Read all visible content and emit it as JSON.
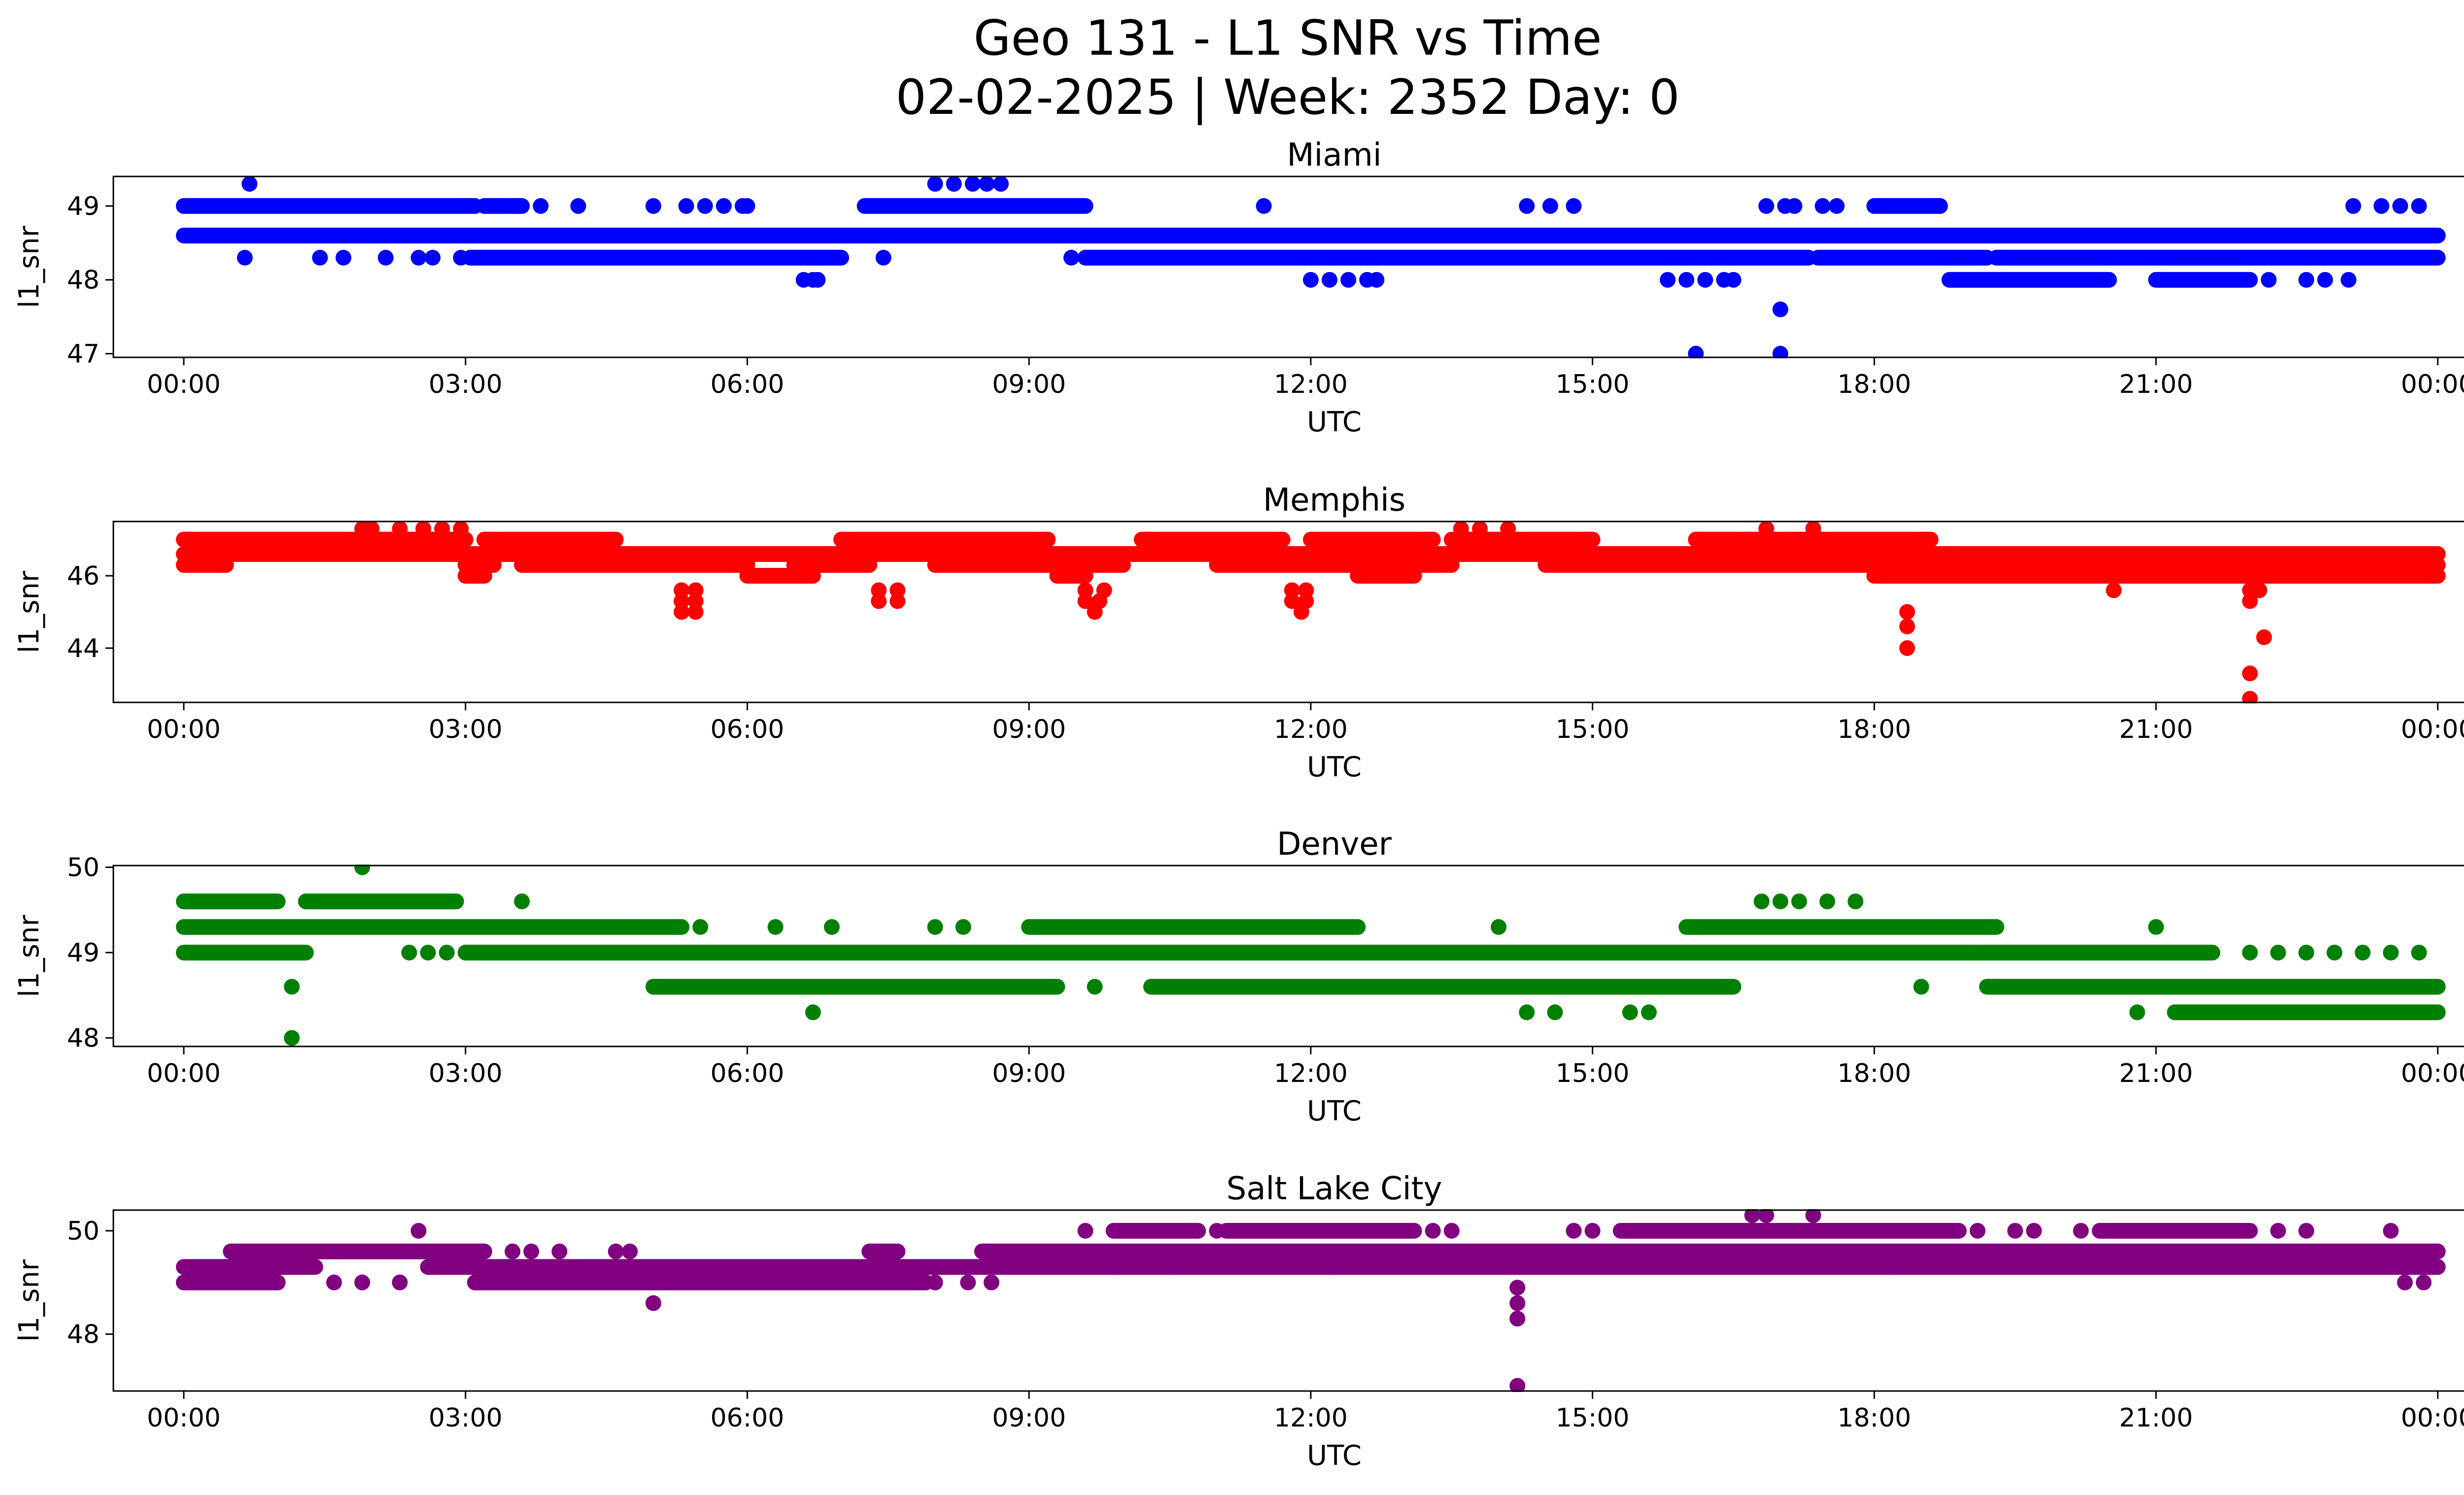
{
  "title_line1": "Geo 131 - L1 SNR vs Time",
  "title_line2": "02-02-2025 | Week: 2352 Day: 0",
  "chart_data": [
    {
      "type": "scatter",
      "title": "Miami",
      "color": "#0000ff",
      "xlabel": "UTC",
      "ylabel": "l1_snr",
      "xlim_hours": [
        -0.75,
        25.25
      ],
      "ylim": [
        46.95,
        49.4
      ],
      "x_ticks": [
        "00:00",
        "03:00",
        "06:00",
        "09:00",
        "12:00",
        "15:00",
        "18:00",
        "21:00",
        "00:00"
      ],
      "y_ticks": [
        47,
        48,
        49
      ],
      "bands": [
        {
          "y": 48.6,
          "segments": [
            [
              0.0,
              24.0
            ]
          ]
        },
        {
          "y": 49.0,
          "segments": [
            [
              0.0,
              3.1
            ],
            [
              3.2,
              3.6
            ],
            [
              7.25,
              9.6
            ],
            [
              18.0,
              18.7
            ]
          ]
        },
        {
          "y": 48.3,
          "segments": [
            [
              3.05,
              7.0
            ],
            [
              9.6,
              17.3
            ],
            [
              17.4,
              19.2
            ],
            [
              19.3,
              24.0
            ]
          ]
        },
        {
          "y": 48.0,
          "segments": [
            [
              18.8,
              20.5
            ],
            [
              21.0,
              22.0
            ]
          ]
        }
      ],
      "points": [
        [
          0.7,
          49.3
        ],
        [
          8.0,
          49.3
        ],
        [
          8.2,
          49.3
        ],
        [
          8.4,
          49.3
        ],
        [
          8.55,
          49.3
        ],
        [
          8.7,
          49.3
        ],
        [
          3.35,
          49.0
        ],
        [
          3.55,
          49.0
        ],
        [
          3.8,
          49.0
        ],
        [
          4.2,
          49.0
        ],
        [
          5.0,
          49.0
        ],
        [
          5.35,
          49.0
        ],
        [
          5.55,
          49.0
        ],
        [
          5.75,
          49.0
        ],
        [
          5.95,
          49.0
        ],
        [
          6.0,
          49.0
        ],
        [
          11.5,
          49.0
        ],
        [
          14.3,
          49.0
        ],
        [
          14.55,
          49.0
        ],
        [
          14.8,
          49.0
        ],
        [
          16.85,
          49.0
        ],
        [
          17.05,
          49.0
        ],
        [
          17.15,
          49.0
        ],
        [
          17.45,
          49.0
        ],
        [
          17.6,
          49.0
        ],
        [
          23.1,
          49.0
        ],
        [
          23.4,
          49.0
        ],
        [
          23.6,
          49.0
        ],
        [
          23.8,
          49.0
        ],
        [
          0.65,
          48.3
        ],
        [
          1.45,
          48.3
        ],
        [
          1.7,
          48.3
        ],
        [
          2.15,
          48.3
        ],
        [
          2.5,
          48.3
        ],
        [
          2.65,
          48.3
        ],
        [
          2.95,
          48.3
        ],
        [
          7.45,
          48.3
        ],
        [
          9.45,
          48.3
        ],
        [
          6.6,
          48.0
        ],
        [
          6.7,
          48.0
        ],
        [
          6.75,
          48.0
        ],
        [
          12.0,
          48.0
        ],
        [
          12.2,
          48.0
        ],
        [
          12.4,
          48.0
        ],
        [
          12.6,
          48.0
        ],
        [
          12.7,
          48.0
        ],
        [
          15.8,
          48.0
        ],
        [
          16.0,
          48.0
        ],
        [
          16.2,
          48.0
        ],
        [
          16.4,
          48.0
        ],
        [
          16.5,
          48.0
        ],
        [
          21.2,
          48.0
        ],
        [
          22.2,
          48.0
        ],
        [
          22.6,
          48.0
        ],
        [
          22.8,
          48.0
        ],
        [
          23.05,
          48.0
        ],
        [
          17.0,
          47.6
        ],
        [
          16.1,
          47.0
        ],
        [
          17.0,
          47.0
        ]
      ]
    },
    {
      "type": "scatter",
      "title": "Memphis",
      "color": "#ff0000",
      "xlabel": "UTC",
      "ylabel": "l1_snr",
      "xlim_hours": [
        -0.75,
        25.25
      ],
      "ylim": [
        42.5,
        47.5
      ],
      "x_ticks": [
        "00:00",
        "03:00",
        "06:00",
        "09:00",
        "12:00",
        "15:00",
        "18:00",
        "21:00",
        "00:00"
      ],
      "y_ticks": [
        44,
        46
      ],
      "bands": [
        {
          "y": 47.0,
          "segments": [
            [
              0.0,
              3.0
            ],
            [
              3.2,
              4.6
            ],
            [
              7.0,
              9.2
            ],
            [
              10.2,
              11.7
            ],
            [
              12.0,
              13.3
            ],
            [
              13.5,
              15.0
            ],
            [
              16.1,
              18.6
            ]
          ]
        },
        {
          "y": 46.6,
          "segments": [
            [
              0.0,
              24.0
            ]
          ]
        },
        {
          "y": 46.3,
          "segments": [
            [
              0.0,
              0.45
            ],
            [
              3.0,
              3.3
            ],
            [
              3.6,
              6.0
            ],
            [
              6.5,
              7.3
            ],
            [
              8.0,
              10.0
            ],
            [
              11.0,
              13.5
            ],
            [
              14.5,
              24.0
            ]
          ]
        },
        {
          "y": 46.0,
          "segments": [
            [
              3.0,
              3.2
            ],
            [
              6.0,
              6.7
            ],
            [
              9.3,
              9.6
            ],
            [
              12.5,
              13.1
            ],
            [
              18.0,
              24.0
            ]
          ]
        }
      ],
      "points": [
        [
          1.9,
          47.3
        ],
        [
          2.0,
          47.3
        ],
        [
          2.3,
          47.3
        ],
        [
          2.55,
          47.3
        ],
        [
          2.75,
          47.3
        ],
        [
          2.95,
          47.3
        ],
        [
          13.6,
          47.3
        ],
        [
          13.8,
          47.3
        ],
        [
          14.1,
          47.3
        ],
        [
          16.85,
          47.3
        ],
        [
          17.35,
          47.3
        ],
        [
          5.3,
          45.6
        ],
        [
          5.45,
          45.6
        ],
        [
          5.3,
          45.3
        ],
        [
          5.45,
          45.3
        ],
        [
          5.3,
          45.0
        ],
        [
          5.45,
          45.0
        ],
        [
          7.4,
          45.6
        ],
        [
          7.6,
          45.6
        ],
        [
          7.4,
          45.3
        ],
        [
          7.6,
          45.3
        ],
        [
          9.6,
          45.6
        ],
        [
          9.8,
          45.6
        ],
        [
          9.6,
          45.3
        ],
        [
          9.75,
          45.3
        ],
        [
          9.7,
          45.0
        ],
        [
          11.8,
          45.6
        ],
        [
          11.95,
          45.6
        ],
        [
          11.8,
          45.3
        ],
        [
          11.95,
          45.3
        ],
        [
          11.9,
          45.0
        ],
        [
          18.35,
          45.0
        ],
        [
          18.35,
          44.6
        ],
        [
          18.35,
          44.0
        ],
        [
          20.55,
          45.6
        ],
        [
          22.0,
          45.6
        ],
        [
          22.1,
          45.6
        ],
        [
          22.0,
          45.3
        ],
        [
          22.15,
          44.3
        ],
        [
          22.0,
          43.3
        ],
        [
          22.0,
          42.6
        ]
      ]
    },
    {
      "type": "scatter",
      "title": "Denver",
      "color": "#008000",
      "xlabel": "UTC",
      "ylabel": "l1_snr",
      "xlim_hours": [
        -0.75,
        25.25
      ],
      "ylim": [
        47.9,
        50.02
      ],
      "x_ticks": [
        "00:00",
        "03:00",
        "06:00",
        "09:00",
        "12:00",
        "15:00",
        "18:00",
        "21:00",
        "00:00"
      ],
      "y_ticks": [
        48,
        49,
        50
      ],
      "bands": [
        {
          "y": 49.3,
          "segments": [
            [
              0.0,
              5.3
            ],
            [
              9.0,
              12.5
            ],
            [
              16.0,
              19.3
            ]
          ]
        },
        {
          "y": 49.0,
          "segments": [
            [
              0.0,
              1.3
            ],
            [
              3.0,
              19.0
            ],
            [
              19.0,
              21.6
            ]
          ]
        },
        {
          "y": 49.6,
          "segments": [
            [
              0.0,
              1.0
            ],
            [
              1.3,
              2.9
            ]
          ]
        },
        {
          "y": 48.6,
          "segments": [
            [
              5.0,
              9.3
            ],
            [
              10.3,
              16.5
            ],
            [
              19.2,
              24.0
            ]
          ]
        },
        {
          "y": 48.3,
          "segments": [
            [
              21.2,
              24.0
            ]
          ]
        }
      ],
      "points": [
        [
          1.9,
          50.0
        ],
        [
          3.6,
          49.6
        ],
        [
          16.8,
          49.6
        ],
        [
          17.0,
          49.6
        ],
        [
          17.2,
          49.6
        ],
        [
          17.5,
          49.6
        ],
        [
          17.8,
          49.6
        ],
        [
          2.4,
          49.0
        ],
        [
          2.6,
          49.0
        ],
        [
          2.8,
          49.0
        ],
        [
          22.0,
          49.0
        ],
        [
          22.3,
          49.0
        ],
        [
          22.6,
          49.0
        ],
        [
          22.9,
          49.0
        ],
        [
          23.2,
          49.0
        ],
        [
          23.5,
          49.0
        ],
        [
          23.8,
          49.0
        ],
        [
          5.5,
          49.3
        ],
        [
          6.3,
          49.3
        ],
        [
          6.9,
          49.3
        ],
        [
          8.0,
          49.3
        ],
        [
          8.3,
          49.3
        ],
        [
          14.0,
          49.3
        ],
        [
          21.0,
          49.3
        ],
        [
          1.15,
          48.6
        ],
        [
          9.7,
          48.6
        ],
        [
          18.5,
          48.6
        ],
        [
          1.15,
          48.0
        ],
        [
          6.7,
          48.3
        ],
        [
          14.3,
          48.3
        ],
        [
          14.6,
          48.3
        ],
        [
          15.4,
          48.3
        ],
        [
          15.6,
          48.3
        ],
        [
          20.8,
          48.3
        ]
      ]
    },
    {
      "type": "scatter",
      "title": "Salt Lake City",
      "color": "#800080",
      "xlabel": "UTC",
      "ylabel": "l1_snr",
      "xlim_hours": [
        -0.75,
        25.25
      ],
      "ylim": [
        46.9,
        50.4
      ],
      "x_ticks": [
        "00:00",
        "03:00",
        "06:00",
        "09:00",
        "12:00",
        "15:00",
        "18:00",
        "21:00",
        "00:00"
      ],
      "y_ticks": [
        48,
        50
      ],
      "bands": [
        {
          "y": 49.3,
          "segments": [
            [
              0.0,
              1.4
            ],
            [
              2.6,
              24.0
            ]
          ]
        },
        {
          "y": 49.6,
          "segments": [
            [
              0.5,
              3.2
            ],
            [
              7.3,
              7.6
            ],
            [
              8.5,
              24.0
            ]
          ]
        },
        {
          "y": 49.0,
          "segments": [
            [
              0.0,
              1.0
            ],
            [
              3.1,
              7.9
            ]
          ]
        },
        {
          "y": 50.0,
          "segments": [
            [
              9.9,
              10.8
            ],
            [
              11.1,
              13.1
            ],
            [
              15.3,
              18.9
            ],
            [
              20.4,
              22.0
            ]
          ]
        }
      ],
      "points": [
        [
          2.5,
          50.0
        ],
        [
          9.6,
          50.0
        ],
        [
          11.0,
          50.0
        ],
        [
          13.3,
          50.0
        ],
        [
          13.5,
          50.0
        ],
        [
          14.8,
          50.0
        ],
        [
          15.0,
          50.0
        ],
        [
          19.1,
          50.0
        ],
        [
          19.5,
          50.0
        ],
        [
          19.7,
          50.0
        ],
        [
          20.2,
          50.0
        ],
        [
          22.3,
          50.0
        ],
        [
          22.6,
          50.0
        ],
        [
          23.5,
          50.0
        ],
        [
          16.7,
          50.3
        ],
        [
          16.85,
          50.3
        ],
        [
          17.35,
          50.3
        ],
        [
          1.0,
          49.0
        ],
        [
          1.6,
          49.0
        ],
        [
          1.9,
          49.0
        ],
        [
          2.3,
          49.0
        ],
        [
          8.0,
          49.0
        ],
        [
          8.35,
          49.0
        ],
        [
          8.6,
          49.0
        ],
        [
          23.65,
          49.0
        ],
        [
          23.85,
          49.0
        ],
        [
          3.5,
          49.6
        ],
        [
          3.7,
          49.6
        ],
        [
          4.0,
          49.6
        ],
        [
          4.6,
          49.6
        ],
        [
          4.75,
          49.6
        ],
        [
          9.9,
          49.3
        ],
        [
          10.5,
          49.3
        ],
        [
          12.2,
          49.3
        ],
        [
          18.2,
          49.3
        ],
        [
          5.0,
          48.6
        ],
        [
          14.2,
          48.9
        ],
        [
          14.2,
          48.6
        ],
        [
          14.2,
          48.3
        ],
        [
          14.2,
          47.0
        ]
      ]
    }
  ]
}
